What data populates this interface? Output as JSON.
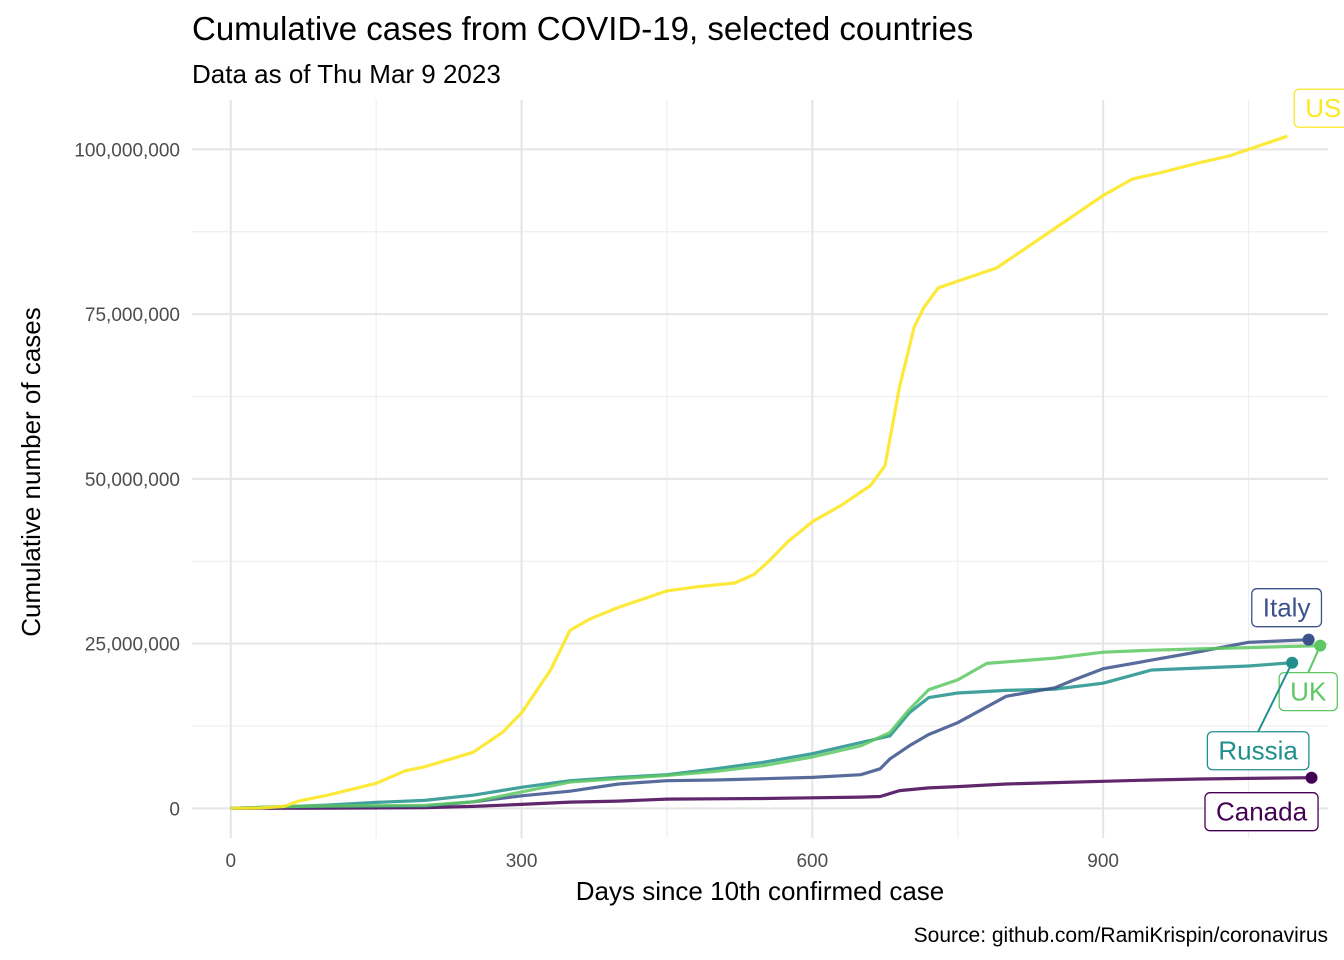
{
  "chart_data": {
    "type": "line",
    "title": "Cumulative cases from COVID-19, selected countries",
    "subtitle": "Data as of Thu Mar 9 2023",
    "xlabel": "Days since 10th confirmed case",
    "ylabel": "Cumulative number of cases",
    "caption": "Source: github.com/RamiKrispin/coronavirus",
    "xlim": [
      -40,
      1132
    ],
    "ylim": [
      -4500000,
      107500000
    ],
    "x_ticks": [
      0,
      300,
      600,
      900
    ],
    "x_tick_labels": [
      "0",
      "300",
      "600",
      "900"
    ],
    "y_ticks": [
      0,
      25000000,
      50000000,
      75000000,
      100000000
    ],
    "y_tick_labels": [
      "0",
      "25,000,000",
      "50,000,000",
      "75,000,000",
      "100,000,000"
    ],
    "grid": true,
    "legend": "none",
    "series": [
      {
        "name": "US",
        "color": "#FDE725",
        "x": [
          0,
          30,
          55,
          70,
          100,
          150,
          180,
          200,
          250,
          280,
          300,
          330,
          350,
          370,
          400,
          450,
          480,
          520,
          540,
          555,
          575,
          600,
          630,
          660,
          675,
          690,
          700,
          705,
          715,
          730,
          760,
          790,
          820,
          850,
          880,
          900,
          930,
          960,
          1000,
          1030,
          1060,
          1080,
          1090
        ],
        "values": [
          0,
          50000,
          300000,
          1100000,
          2000000,
          3800000,
          5700000,
          6300000,
          8500000,
          11500000,
          14500000,
          21000000,
          27000000,
          28700000,
          30500000,
          33000000,
          33600000,
          34200000,
          35500000,
          37500000,
          40500000,
          43500000,
          46000000,
          49000000,
          52000000,
          64000000,
          70000000,
          73000000,
          76000000,
          79000000,
          80500000,
          82000000,
          85000000,
          88000000,
          91000000,
          93000000,
          95500000,
          96500000,
          98000000,
          99000000,
          100500000,
          101500000,
          102000000
        ]
      },
      {
        "name": "Italy",
        "color": "#3B528B",
        "x": [
          0,
          50,
          100,
          200,
          250,
          300,
          350,
          400,
          450,
          500,
          550,
          600,
          650,
          670,
          680,
          700,
          720,
          750,
          800,
          850,
          870,
          900,
          950,
          1000,
          1050,
          1112
        ],
        "values": [
          0,
          200000,
          250000,
          300000,
          1000000,
          1900000,
          2600000,
          3700000,
          4200000,
          4300000,
          4500000,
          4700000,
          5100000,
          6000000,
          7500000,
          9500000,
          11200000,
          13000000,
          17000000,
          18300000,
          19500000,
          21200000,
          22500000,
          23800000,
          25200000,
          25600000
        ]
      },
      {
        "name": "UK",
        "color": "#5DC863",
        "x": [
          0,
          50,
          100,
          200,
          250,
          300,
          350,
          400,
          450,
          500,
          550,
          600,
          650,
          680,
          700,
          720,
          750,
          780,
          850,
          900,
          950,
          1000,
          1050,
          1100,
          1124
        ],
        "values": [
          0,
          250000,
          350000,
          450000,
          1000000,
          2500000,
          4000000,
          4500000,
          5000000,
          5600000,
          6500000,
          7800000,
          9500000,
          11500000,
          15000000,
          18000000,
          19500000,
          22000000,
          22800000,
          23700000,
          24000000,
          24200000,
          24400000,
          24600000,
          24700000
        ]
      },
      {
        "name": "Russia",
        "color": "#21908C",
        "x": [
          0,
          50,
          100,
          150,
          200,
          250,
          300,
          350,
          400,
          450,
          500,
          550,
          600,
          650,
          680,
          700,
          720,
          750,
          800,
          850,
          900,
          950,
          1000,
          1050,
          1095
        ],
        "values": [
          0,
          200000,
          500000,
          900000,
          1200000,
          2000000,
          3200000,
          4200000,
          4700000,
          5100000,
          6000000,
          7000000,
          8300000,
          10000000,
          11000000,
          14500000,
          16800000,
          17500000,
          17900000,
          18100000,
          19000000,
          21000000,
          21300000,
          21600000,
          22100000
        ]
      },
      {
        "name": "Canada",
        "color": "#440154",
        "x": [
          0,
          100,
          200,
          250,
          300,
          350,
          400,
          450,
          500,
          550,
          600,
          650,
          670,
          690,
          720,
          750,
          800,
          850,
          900,
          950,
          1000,
          1050,
          1115
        ],
        "values": [
          0,
          20000,
          100000,
          300000,
          600000,
          950000,
          1100000,
          1400000,
          1450000,
          1500000,
          1600000,
          1700000,
          1800000,
          2700000,
          3100000,
          3300000,
          3700000,
          3900000,
          4100000,
          4300000,
          4450000,
          4550000,
          4650000
        ]
      }
    ]
  }
}
